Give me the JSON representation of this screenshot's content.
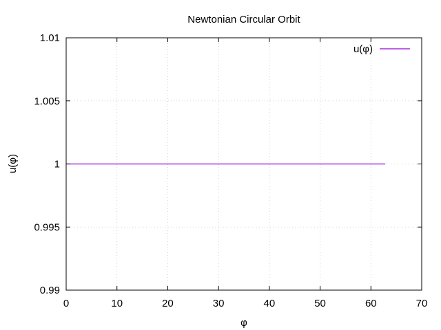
{
  "chart_data": {
    "type": "line",
    "title": "Newtonian Circular Orbit",
    "xlabel": "φ",
    "ylabel": "u(φ)",
    "xlim": [
      0,
      70
    ],
    "ylim": [
      0.99,
      1.01
    ],
    "xticks": [
      "0",
      "10",
      "20",
      "30",
      "40",
      "50",
      "60",
      "70"
    ],
    "yticks": [
      "0.99",
      "0.995",
      "1",
      "1.005",
      "1.01"
    ],
    "grid": true,
    "legend_position": "top-right",
    "series": [
      {
        "name": "u(φ)",
        "color": "#9400d3",
        "x": [
          0,
          62.83
        ],
        "y": [
          1,
          1
        ]
      }
    ]
  }
}
